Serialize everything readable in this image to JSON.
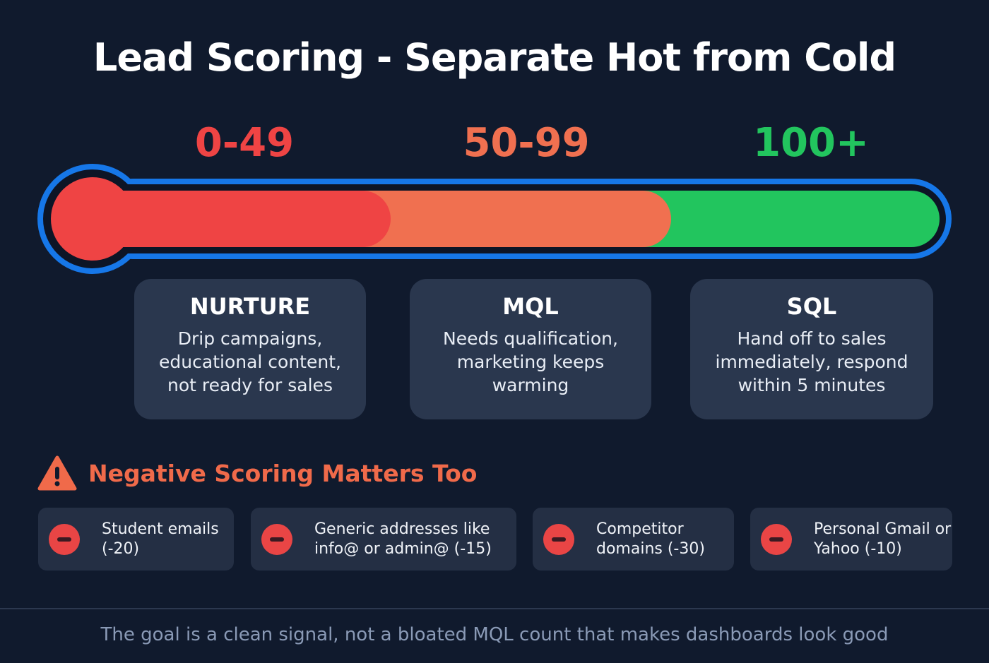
{
  "title": "Lead Scoring - Separate Hot from Cold",
  "colors": {
    "cold": "#ef4444",
    "warm": "#f07050",
    "hot": "#22c55e",
    "outline": "#1677e8"
  },
  "ranges": [
    {
      "label": "0-49",
      "color": "#ef4444"
    },
    {
      "label": "50-99",
      "color": "#f07050"
    },
    {
      "label": "100+",
      "color": "#22c55e"
    }
  ],
  "stages": [
    {
      "title": "NURTURE",
      "text": "Drip campaigns, educational content, not ready for sales"
    },
    {
      "title": "MQL",
      "text": "Needs qualification, marketing keeps warming"
    },
    {
      "title": "SQL",
      "text": "Hand off to sales immediately, respond within 5 minutes"
    }
  ],
  "negative": {
    "icon": "warning-triangle-icon",
    "heading": "Negative Scoring Matters Too",
    "items": [
      {
        "icon": "minus-circle-icon",
        "text": "Student emails (-20)"
      },
      {
        "icon": "minus-circle-icon",
        "text": "Generic addresses like info@ or admin@ (-15)"
      },
      {
        "icon": "minus-circle-icon",
        "text": "Competitor domains (-30)"
      },
      {
        "icon": "minus-circle-icon",
        "text": "Personal Gmail or Yahoo (-10)"
      }
    ]
  },
  "footer": "The goal is a clean signal, not a bloated MQL count that makes dashboards look good"
}
